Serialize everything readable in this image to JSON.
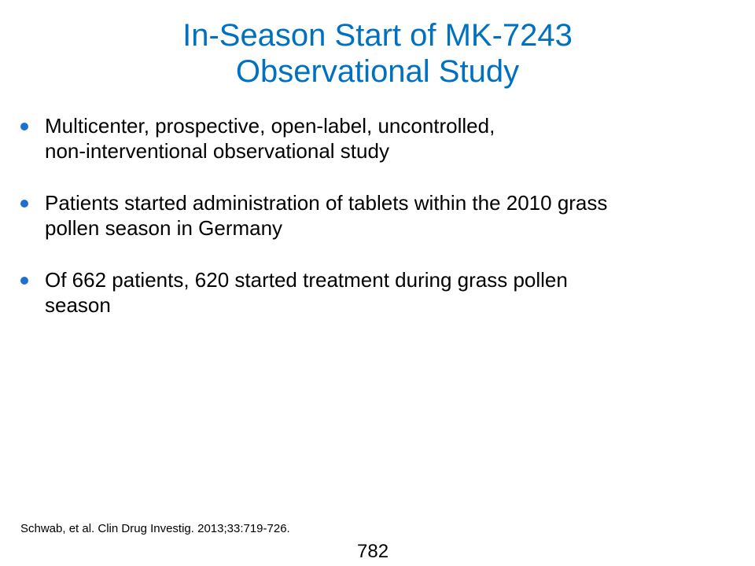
{
  "title": {
    "line1": "In-Season Start of MK-7243",
    "line2": "Observational Study"
  },
  "bullets": [
    {
      "line1": "Multicenter, prospective, open-label, uncontrolled,",
      "line2": "non-interventional observational study"
    },
    {
      "line1": "Patients started administration of tablets within the 2010 grass",
      "line2": "pollen season in Germany"
    },
    {
      "line1": "Of 662 patients, 620 started treatment during grass pollen",
      "line2": "season"
    }
  ],
  "citation": "Schwab, et al. Clin Drug Investig. 2013;33:719-726.",
  "page_number": "782",
  "colors": {
    "title": "#0070c0",
    "bullet": "#1f6fd0",
    "text": "#000000"
  }
}
